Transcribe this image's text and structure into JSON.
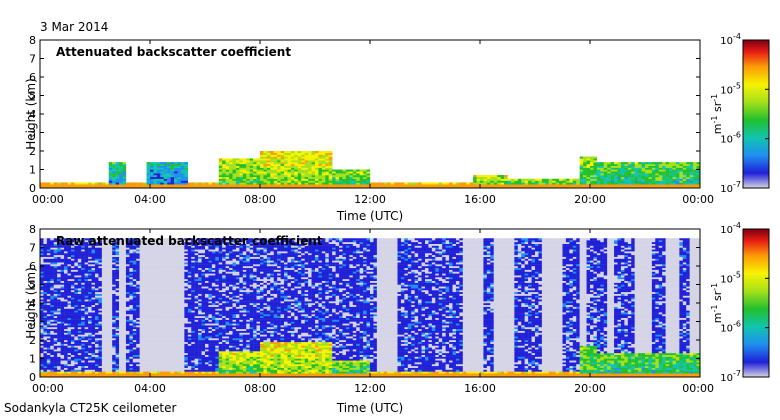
{
  "page": {
    "date": "3 Mar 2014",
    "footer": "Sodankyla CT25K ceilometer"
  },
  "colormap": [
    "#d4d4e6",
    "#2020d8",
    "#1f8ff0",
    "#11c4b0",
    "#22c02c",
    "#a6e01a",
    "#f8f200",
    "#fb9b08",
    "#e81c14",
    "#7a0010"
  ],
  "chart_data": [
    {
      "type": "heatmap",
      "title": "Attenuated backscatter coefficient",
      "xlabel": "Time (UTC)",
      "ylabel": "Height (km)",
      "xlim": [
        0,
        24
      ],
      "ylim": [
        0,
        8
      ],
      "x_ticks": [
        "00:00",
        "04:00",
        "08:00",
        "12:00",
        "16:00",
        "20:00",
        "00:00"
      ],
      "y_ticks": [
        "0",
        "1",
        "2",
        "3",
        "4",
        "5",
        "6",
        "7",
        "8"
      ],
      "colorbar": {
        "scale": "log",
        "range": [
          1e-07,
          0.0001
        ],
        "ticks": [
          "10^-4",
          "10^-5",
          "10^-6",
          "10^-7"
        ],
        "label": "m^-1 sr^-1"
      },
      "noise_background": false,
      "features": [
        {
          "x0": 0,
          "x1": 24,
          "top": 0.3,
          "level": 6.5
        },
        {
          "x0": 2.5,
          "x1": 3.1,
          "top": 1.4,
          "level": 3.5
        },
        {
          "x0": 3.9,
          "x1": 5.4,
          "top": 1.4,
          "level": 3
        },
        {
          "x0": 6.5,
          "x1": 8.0,
          "top": 1.6,
          "level": 5.5
        },
        {
          "x0": 8.0,
          "x1": 10.6,
          "top": 2.0,
          "level": 6
        },
        {
          "x0": 10.6,
          "x1": 12.0,
          "top": 1.0,
          "level": 5
        },
        {
          "x0": 15.8,
          "x1": 17.0,
          "top": 0.7,
          "level": 5.5
        },
        {
          "x0": 17.0,
          "x1": 19.6,
          "top": 0.5,
          "level": 5
        },
        {
          "x0": 19.6,
          "x1": 20.3,
          "top": 1.7,
          "level": 5
        },
        {
          "x0": 20.3,
          "x1": 24.0,
          "top": 1.4,
          "level": 4.5
        }
      ]
    },
    {
      "type": "heatmap",
      "title": "Raw attenuated backscatter coefficient",
      "xlabel": "Time (UTC)",
      "ylabel": "Height (km)",
      "xlim": [
        0,
        24
      ],
      "ylim": [
        0,
        8
      ],
      "x_ticks": [
        "00:00",
        "04:00",
        "08:00",
        "12:00",
        "16:00",
        "20:00",
        "00:00"
      ],
      "y_ticks": [
        "0",
        "1",
        "2",
        "3",
        "4",
        "5",
        "6",
        "7",
        "8"
      ],
      "colorbar": {
        "scale": "log",
        "range": [
          1e-07,
          0.0001
        ],
        "ticks": [
          "10^-4",
          "10^-5",
          "10^-6",
          "10^-7"
        ],
        "label": "m^-1 sr^-1"
      },
      "noise_background": true,
      "noise_top_km": 7.5,
      "noise_gaps": [
        [
          2.2,
          2.6
        ],
        [
          2.9,
          3.1
        ],
        [
          3.6,
          5.3
        ],
        [
          12.3,
          13.0
        ],
        [
          15.4,
          16.1
        ],
        [
          16.5,
          17.2
        ],
        [
          18.3,
          19.0
        ],
        [
          19.6,
          19.9
        ],
        [
          20.6,
          20.9
        ],
        [
          21.6,
          22.2
        ],
        [
          22.8,
          23.3
        ],
        [
          23.6,
          24.0
        ]
      ],
      "features": [
        {
          "x0": 0,
          "x1": 24,
          "top": 0.3,
          "level": 6.5
        },
        {
          "x0": 6.5,
          "x1": 8.0,
          "top": 1.4,
          "level": 5.5
        },
        {
          "x0": 8.0,
          "x1": 10.6,
          "top": 1.9,
          "level": 6
        },
        {
          "x0": 10.6,
          "x1": 12.0,
          "top": 0.9,
          "level": 5
        },
        {
          "x0": 19.6,
          "x1": 20.3,
          "top": 1.7,
          "level": 5
        },
        {
          "x0": 20.3,
          "x1": 24.0,
          "top": 1.3,
          "level": 4.5
        }
      ]
    }
  ]
}
